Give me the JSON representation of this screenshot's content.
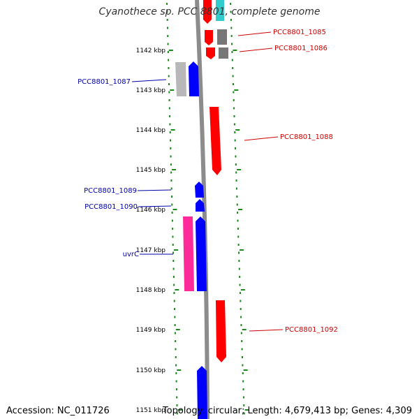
{
  "title": "Cyanothece sp. PCC 8801, complete genome",
  "footer": {
    "accession": "Accession: NC_011726",
    "summary": "Topology: circular; Length: 4,679,413 bp; Genes: 4,309"
  },
  "colors": {
    "tick": "#1a8a1a",
    "backbone": "#8c8c8c",
    "label_red": "#cc0000",
    "label_blue": "#0000aa",
    "gene_red": "#ff0000",
    "gene_blue": "#0000ff",
    "gene_gray": "#777777",
    "gene_lightgray": "#b8b8b8",
    "gene_magenta": "#ff2a9a",
    "gene_cyan": "#33cccc"
  },
  "ruler_labels": [
    "1142 kbp",
    "1143 kbp",
    "1144 kbp",
    "1145 kbp",
    "1146 kbp",
    "1147 kbp",
    "1148 kbp",
    "1149 kbp",
    "1150 kbp",
    "1151 kbp"
  ],
  "gene_labels": [
    {
      "name": "PCC8801_1085",
      "color": "red"
    },
    {
      "name": "PCC8801_1086",
      "color": "red"
    },
    {
      "name": "PCC8801_1087",
      "color": "blue"
    },
    {
      "name": "PCC8801_1088",
      "color": "red"
    },
    {
      "name": "PCC8801_1089",
      "color": "blue"
    },
    {
      "name": "PCC8801_1090",
      "color": "blue"
    },
    {
      "name": "uvrC",
      "color": "blue"
    },
    {
      "name": "PCC8801_1092",
      "color": "red"
    }
  ]
}
